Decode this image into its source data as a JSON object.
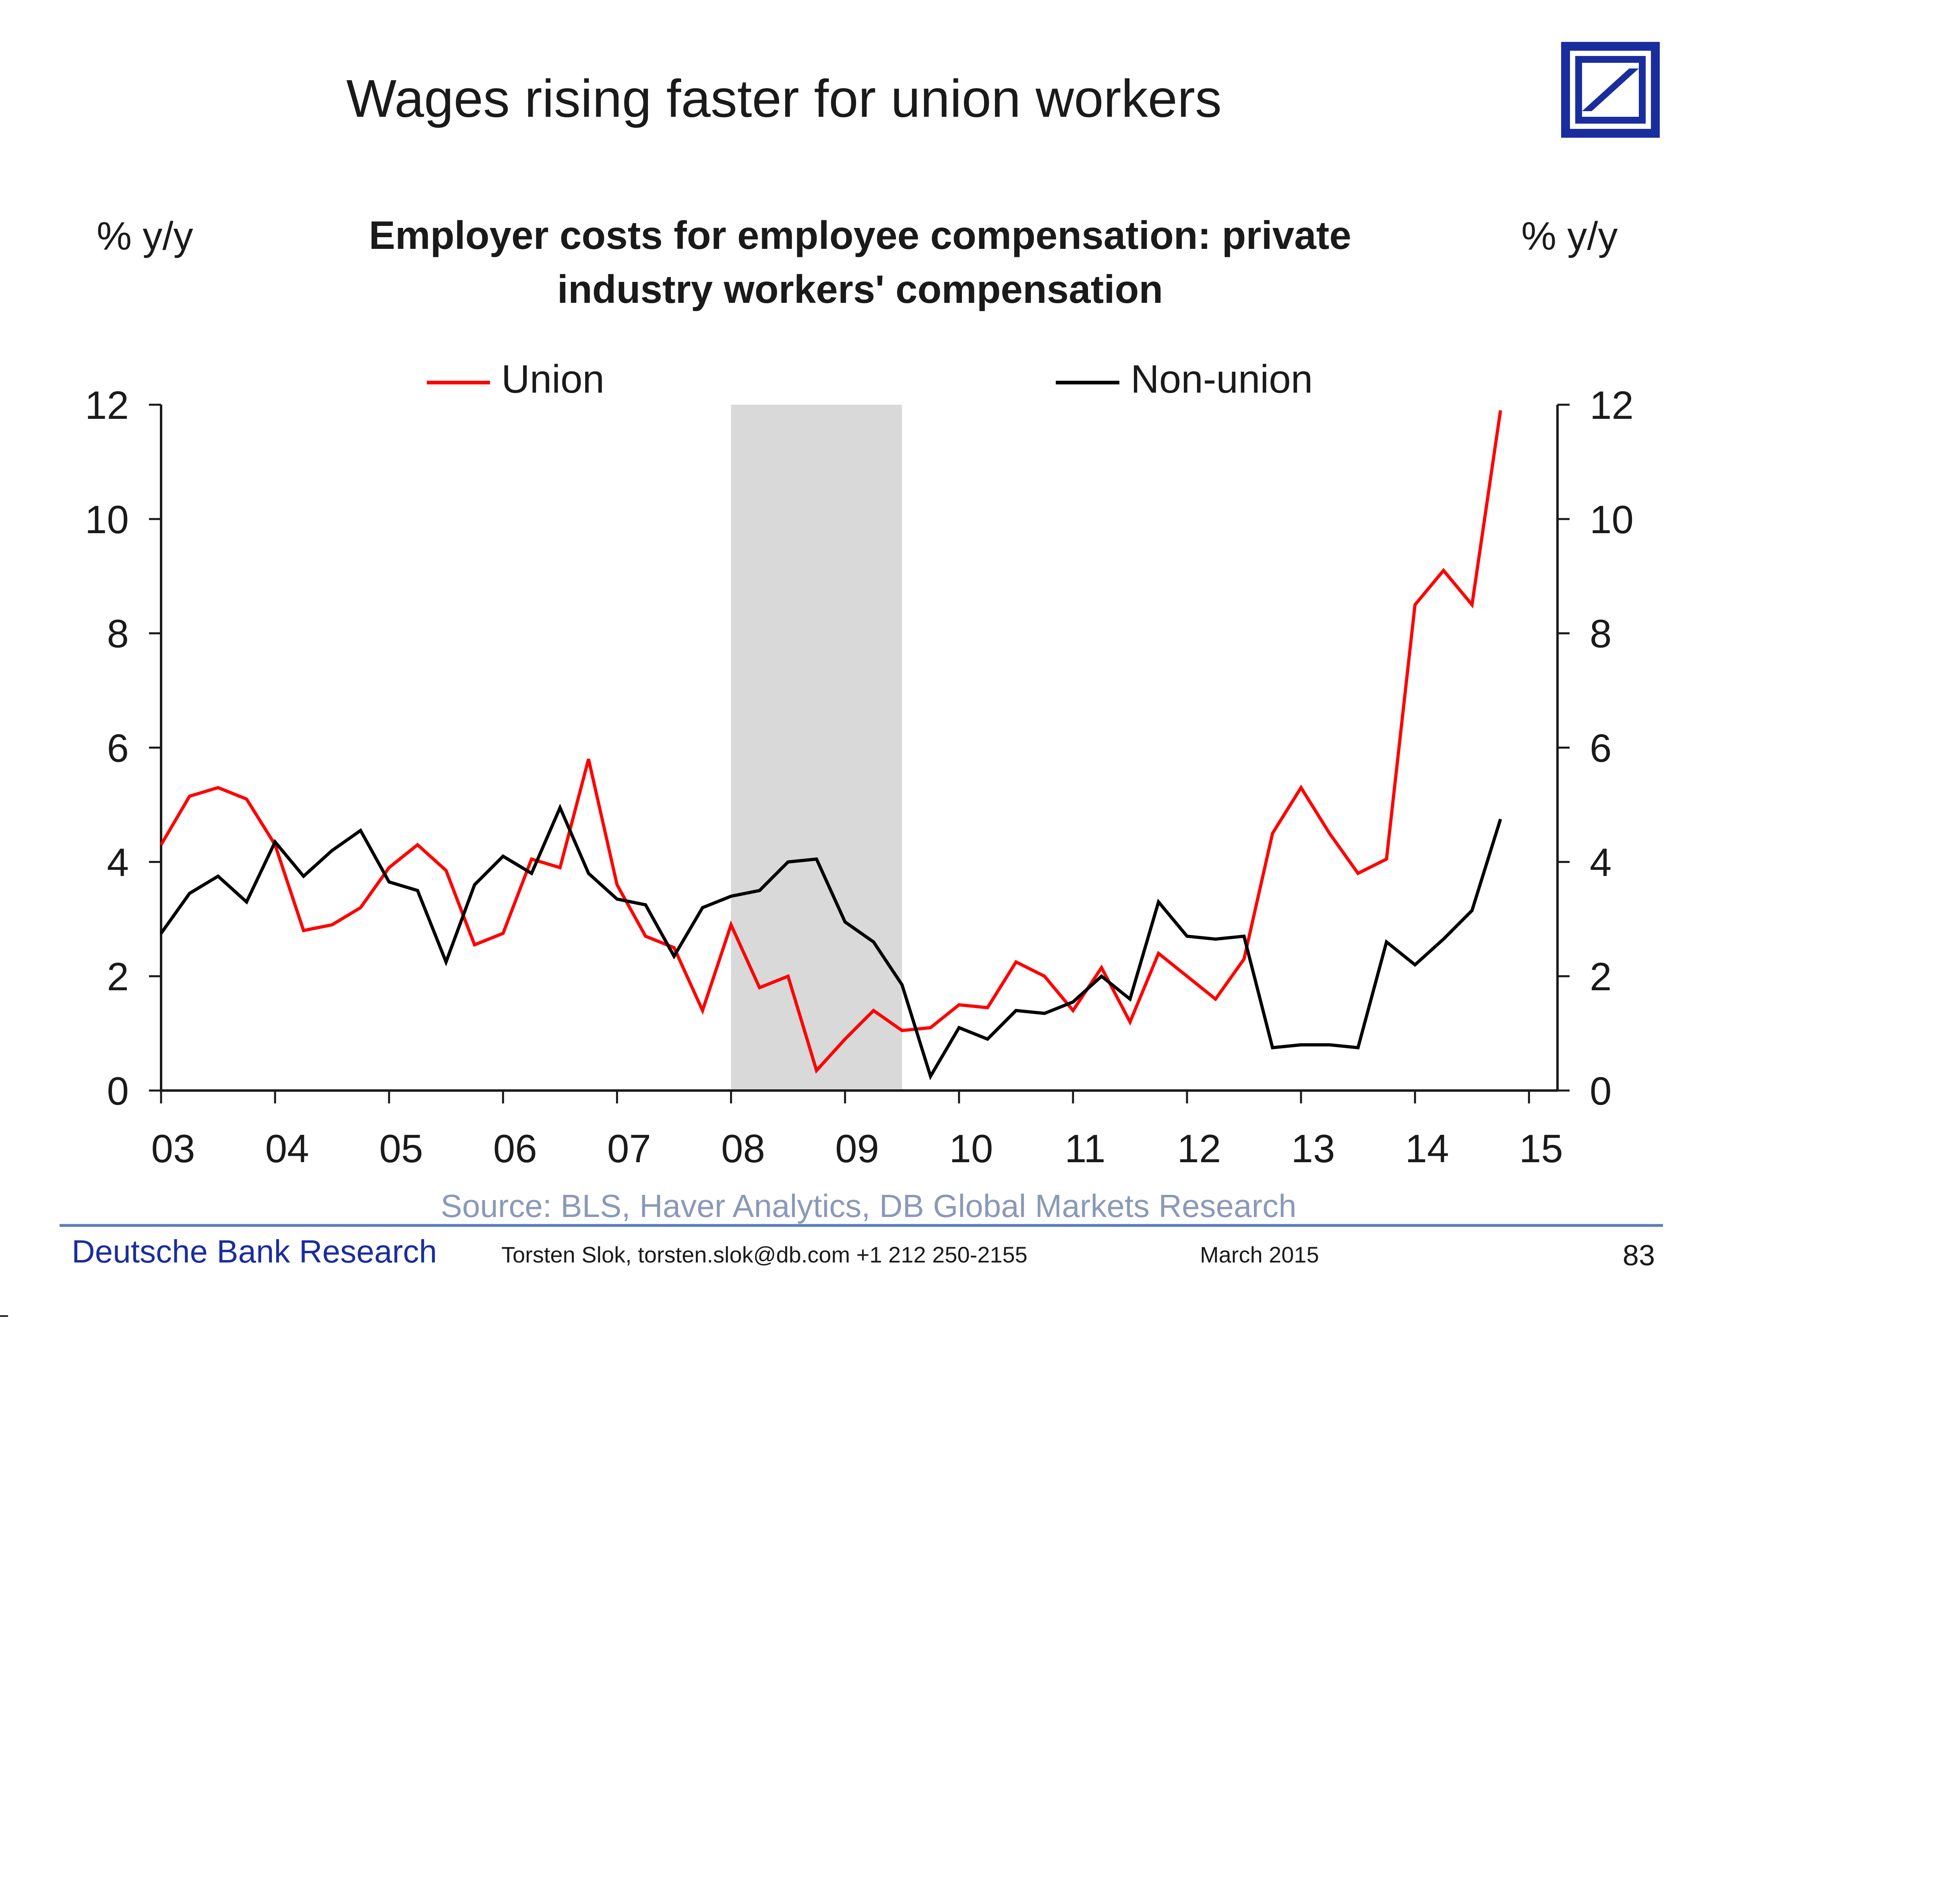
{
  "slide": {
    "title": "Wages rising faster for union workers",
    "source": "Source: BLS, Haver Analytics, DB Global Markets Research",
    "footer_org": "Deutsche Bank Research",
    "footer_contact": "Torsten Slok, torsten.slok@db.com  +1 212 250-2155",
    "footer_date": "March  2015",
    "page_number": "83",
    "brand_blue": "#1a2d9e",
    "logo_icon": "deutsche-bank-logo-icon"
  },
  "chart_data": {
    "type": "line",
    "title_line1": "Employer costs for employee compensation: private",
    "title_line2": "industry workers' compensation",
    "ylabel_left": "% y/y",
    "ylabel_right": "% y/y",
    "ylim": [
      0,
      12
    ],
    "yticks": [
      0,
      2,
      4,
      6,
      8,
      10,
      12
    ],
    "ytick_labels": [
      "0",
      "2",
      "4",
      "6",
      "8",
      "10",
      "12"
    ],
    "xlim": [
      2003,
      2015.25
    ],
    "xticks": [
      2003,
      2004,
      2005,
      2006,
      2007,
      2008,
      2009,
      2010,
      2011,
      2012,
      2013,
      2014,
      2015
    ],
    "xtick_labels": [
      "03",
      "04",
      "05",
      "06",
      "07",
      "08",
      "09",
      "10",
      "11",
      "12",
      "13",
      "14",
      "15"
    ],
    "legend_position": "top",
    "recession_shading": {
      "start": 2008.0,
      "end": 2009.5,
      "color": "#d9d9d9"
    },
    "series": [
      {
        "name": "Union",
        "color": "#ff0000",
        "x": [
          2003.0,
          2003.25,
          2003.5,
          2003.75,
          2004.0,
          2004.25,
          2004.5,
          2004.75,
          2005.0,
          2005.25,
          2005.5,
          2005.75,
          2006.0,
          2006.25,
          2006.5,
          2006.75,
          2007.0,
          2007.25,
          2007.5,
          2007.75,
          2008.0,
          2008.25,
          2008.5,
          2008.75,
          2009.0,
          2009.25,
          2009.5,
          2009.75,
          2010.0,
          2010.25,
          2010.5,
          2010.75,
          2011.0,
          2011.25,
          2011.5,
          2011.75,
          2012.0,
          2012.25,
          2012.5,
          2012.75,
          2013.0,
          2013.25,
          2013.5,
          2013.75,
          2014.0,
          2014.25,
          2014.5,
          2014.75
        ],
        "values": [
          4.3,
          5.15,
          5.3,
          5.1,
          4.3,
          2.8,
          2.9,
          3.2,
          3.9,
          4.3,
          3.85,
          2.55,
          2.75,
          4.05,
          3.9,
          5.8,
          3.6,
          2.7,
          2.5,
          1.4,
          2.9,
          1.8,
          2.0,
          0.35,
          0.9,
          1.4,
          1.05,
          1.1,
          1.5,
          1.45,
          2.25,
          2.0,
          1.4,
          2.15,
          1.2,
          2.4,
          2.0,
          1.6,
          2.3,
          4.5,
          5.3,
          4.5,
          3.8,
          4.05,
          8.5,
          9.1,
          8.5,
          11.9
        ]
      },
      {
        "name": "Non-union",
        "color": "#000000",
        "x": [
          2003.0,
          2003.25,
          2003.5,
          2003.75,
          2004.0,
          2004.25,
          2004.5,
          2004.75,
          2005.0,
          2005.25,
          2005.5,
          2005.75,
          2006.0,
          2006.25,
          2006.5,
          2006.75,
          2007.0,
          2007.25,
          2007.5,
          2007.75,
          2008.0,
          2008.25,
          2008.5,
          2008.75,
          2009.0,
          2009.25,
          2009.5,
          2009.75,
          2010.0,
          2010.25,
          2010.5,
          2010.75,
          2011.0,
          2011.25,
          2011.5,
          2011.75,
          2012.0,
          2012.25,
          2012.5,
          2012.75,
          2013.0,
          2013.25,
          2013.5,
          2013.75,
          2014.0,
          2014.25,
          2014.5,
          2014.75
        ],
        "values": [
          2.75,
          3.45,
          3.75,
          3.3,
          4.35,
          3.75,
          4.2,
          4.55,
          3.65,
          3.5,
          2.25,
          3.6,
          4.1,
          3.8,
          4.95,
          3.8,
          3.35,
          3.25,
          2.35,
          3.2,
          3.4,
          3.5,
          4.0,
          4.05,
          2.95,
          2.6,
          1.85,
          0.25,
          1.1,
          0.9,
          1.4,
          1.35,
          1.55,
          2.0,
          1.6,
          3.3,
          2.7,
          2.65,
          2.7,
          0.75,
          0.8,
          0.8,
          0.75,
          2.6,
          2.2,
          2.65,
          3.15,
          4.75
        ]
      }
    ]
  }
}
